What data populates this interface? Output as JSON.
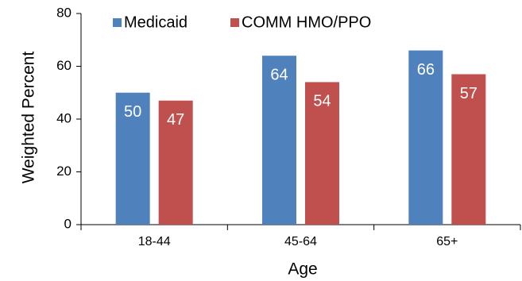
{
  "chart_data": {
    "type": "bar",
    "categories": [
      "18-44",
      "45-64",
      "65+"
    ],
    "series": [
      {
        "name": "Medicaid",
        "values": [
          50,
          64,
          66
        ],
        "color": "#4f81bd"
      },
      {
        "name": "COMM HMO/PPO",
        "values": [
          47,
          54,
          57
        ],
        "color": "#c0504d"
      }
    ],
    "xlabel": "Age",
    "ylabel": "Weighted Percent",
    "ylim": [
      0,
      80
    ],
    "yticks": [
      0,
      20,
      40,
      60,
      80
    ],
    "grid": false,
    "legend": "top",
    "data_labels": true
  }
}
